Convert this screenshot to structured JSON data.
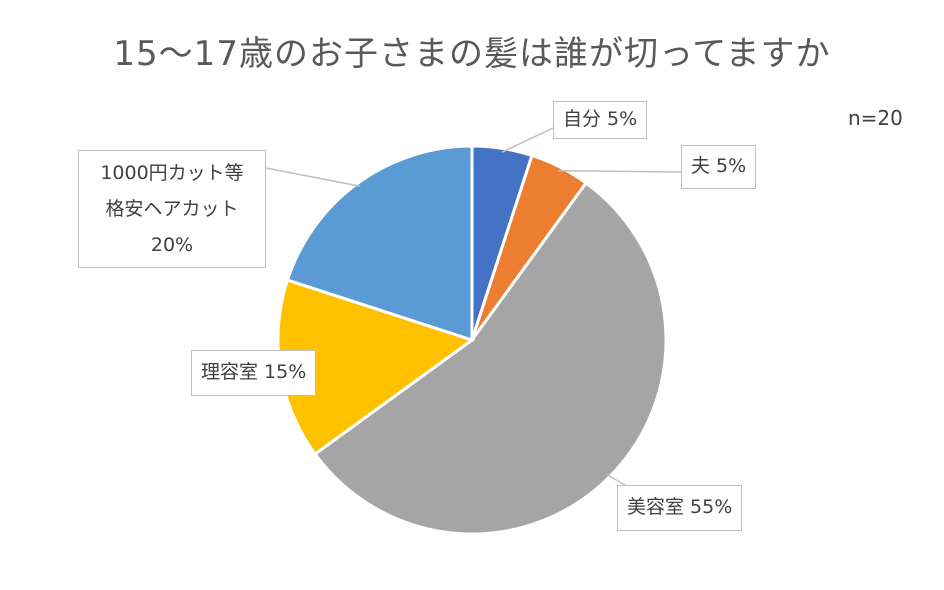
{
  "chart_data": {
    "type": "pie",
    "title": "15～17歳のお子さまの髪は誰が切ってますか",
    "note": "n=20",
    "slices": [
      {
        "label": "自分",
        "value": 5,
        "pct_label": "5%",
        "color": "#4472C4"
      },
      {
        "label": "夫",
        "value": 5,
        "pct_label": "5%",
        "color": "#ED7D31"
      },
      {
        "label": "美容室",
        "value": 55,
        "pct_label": "55%",
        "color": "#A5A5A5"
      },
      {
        "label": "理容室",
        "value": 15,
        "pct_label": "15%",
        "color": "#FFC000"
      },
      {
        "label_lines": [
          "1000円カット等",
          "格安ヘアカット"
        ],
        "value": 20,
        "pct_label": "20%",
        "color": "#5B9BD5"
      }
    ],
    "start_angle": "12 o'clock",
    "direction": "clockwise",
    "legend": "none",
    "data_labels": "callout boxes with leader lines"
  }
}
